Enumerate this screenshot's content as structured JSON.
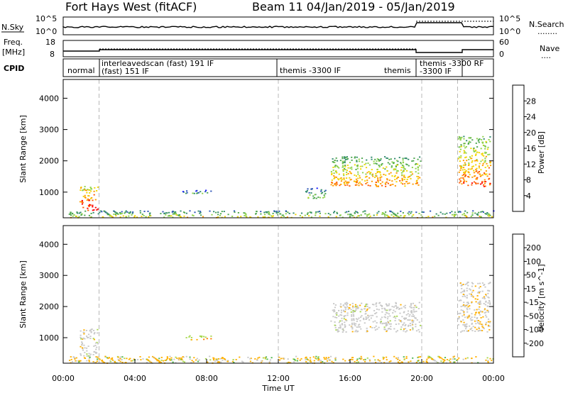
{
  "title": {
    "left": "Fort Hays West (fitACF)",
    "right": "Beam 11  04/Jan/2019 - 05/Jan/2019"
  },
  "header_panels": {
    "nsky": {
      "label": "N.Sky",
      "ticks": [
        "10^5",
        "10^0"
      ],
      "right_ticks": [
        "10^5",
        "10^0"
      ],
      "right_label": "N.Search",
      "right_dash": "........"
    },
    "freq": {
      "label_top": "Freq.",
      "label_unit": "[MHz]",
      "ticks": [
        "18",
        "8"
      ],
      "right_ticks": [
        "60",
        "0"
      ],
      "right_label": "Nave",
      "right_dash": "...."
    },
    "cpid": {
      "label": "CPID",
      "segments": [
        {
          "line1": "normal",
          "line2": ""
        },
        {
          "line1": "interleavedscan (fast) 191 IF",
          "line2": "(fast) 151 IF"
        },
        {
          "line1": "themis -3300 IF",
          "line2": ""
        },
        {
          "line1": "themis",
          "line2": ""
        },
        {
          "line1": "themis -3300 RF",
          "line2": "-3300 IF"
        }
      ]
    }
  },
  "colors": {
    "power_scale": [
      "#1414ff",
      "#2b53b8",
      "#318a6e",
      "#4fa84f",
      "#8fd34a",
      "#f2d600",
      "#ff9a00",
      "#ff5a00",
      "#ff0000"
    ],
    "velocity_scale": [
      "#1414ff",
      "#2b53b8",
      "#318a6e",
      "#50b850",
      "#a8d850",
      "#c8c8c8",
      "#ffb000",
      "#ff8000",
      "#ff5000",
      "#ff0000"
    ],
    "dashed_lines": "#b8b8b8"
  },
  "chart_data": [
    {
      "type": "heatmap",
      "title": "",
      "xlabel": "",
      "ylabel": "Slant Range [km]",
      "x_range_hours": [
        0,
        24
      ],
      "ylim": [
        180,
        4600
      ],
      "y_ticks": [
        "1000",
        "2000",
        "3000",
        "4000"
      ],
      "colorbar": {
        "label": "Power [dB]",
        "ticks": [
          "4",
          "8",
          "12",
          "16",
          "20",
          "24",
          "28"
        ],
        "range": [
          0,
          32
        ]
      },
      "echo_regions": [
        {
          "t": [
            0.3,
            24.0
          ],
          "range": [
            200,
            420
          ],
          "value": 14,
          "note": "near-range band"
        },
        {
          "t": [
            0.9,
            1.9
          ],
          "range": [
            430,
            1200
          ],
          "value": 24
        },
        {
          "t": [
            6.6,
            8.3
          ],
          "range": [
            950,
            1080
          ],
          "value": 8
        },
        {
          "t": [
            13.5,
            14.6
          ],
          "range": [
            800,
            1150
          ],
          "value": 10
        },
        {
          "t": [
            14.9,
            19.9
          ],
          "range": [
            1200,
            2150
          ],
          "value": 18
        },
        {
          "t": [
            22.0,
            23.8
          ],
          "range": [
            1200,
            2800
          ],
          "value": 20
        }
      ],
      "dashed_time_markers": [
        2.0,
        12.0,
        20.0,
        22.0
      ]
    },
    {
      "type": "heatmap",
      "title": "",
      "xlabel": "Time UT",
      "ylabel": "Slant Range [km]",
      "x_range_hours": [
        0,
        24
      ],
      "ylim": [
        180,
        4600
      ],
      "y_ticks": [
        "1000",
        "2000",
        "3000",
        "4000"
      ],
      "x_ticks": [
        "00:00",
        "04:00",
        "08:00",
        "12:00",
        "16:00",
        "20:00",
        "00:00"
      ],
      "colorbar": {
        "label": "Velocity [m s^-1]",
        "ticks": [
          "200",
          "100",
          "50",
          "15",
          "-15",
          "-50",
          "-100",
          "-200"
        ]
      },
      "echo_regions": [
        {
          "t": [
            0.3,
            24.0
          ],
          "range": [
            200,
            420
          ],
          "value": -40,
          "note": "near-range band"
        },
        {
          "t": [
            0.9,
            1.9
          ],
          "range": [
            430,
            1300
          ],
          "value": 0
        },
        {
          "t": [
            6.6,
            8.3
          ],
          "range": [
            950,
            1080
          ],
          "value": 10
        },
        {
          "t": [
            14.9,
            19.9
          ],
          "range": [
            1200,
            2150
          ],
          "value": 0
        },
        {
          "t": [
            22.0,
            23.8
          ],
          "range": [
            1200,
            2800
          ],
          "value": -10
        }
      ],
      "dashed_time_markers": [
        2.0,
        12.0,
        20.0,
        22.0
      ]
    }
  ]
}
